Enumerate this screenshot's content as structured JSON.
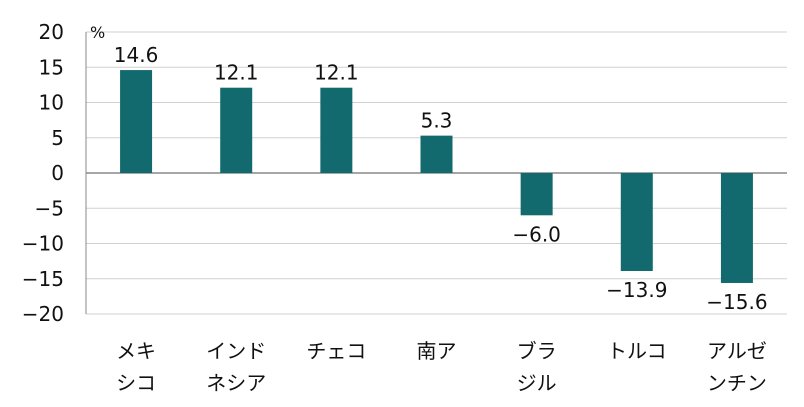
{
  "chart_data": {
    "type": "bar",
    "unit_label": "%",
    "categories": [
      [
        "メキ",
        "シコ"
      ],
      [
        "インド",
        "ネシア"
      ],
      [
        "チェコ"
      ],
      [
        "南ア"
      ],
      [
        "ブラ",
        "ジル"
      ],
      [
        "トルコ"
      ],
      [
        "アルゼ",
        "ンチン"
      ]
    ],
    "values": [
      14.6,
      12.1,
      12.1,
      5.3,
      -6.0,
      -13.9,
      -15.6
    ],
    "value_labels": [
      "14.6",
      "12.1",
      "12.1",
      "5.3",
      "−6.0",
      "−13.9",
      "−15.6"
    ],
    "ylim": [
      -20,
      20
    ],
    "yticks": [
      20,
      15,
      10,
      5,
      0,
      -5,
      -10,
      -15,
      -20
    ],
    "ytick_labels": [
      "20",
      "15",
      "10",
      "5",
      "0",
      "−5",
      "−10",
      "−15",
      "−20"
    ],
    "grid": true,
    "colors": {
      "bar": "#136a6e",
      "grid": "#d0d0d0",
      "axis": "#888888"
    }
  }
}
